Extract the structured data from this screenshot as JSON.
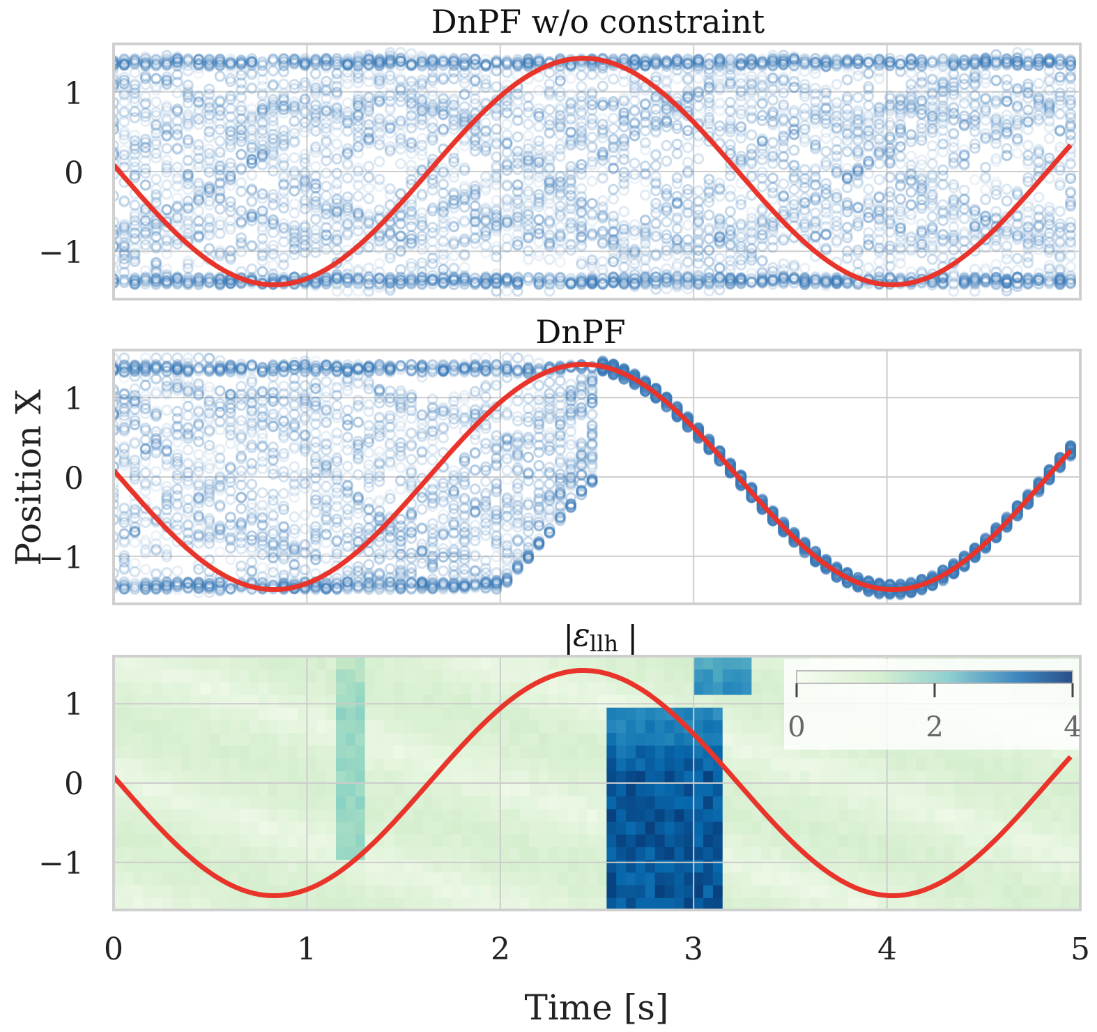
{
  "chart_data": [
    {
      "type": "scatter",
      "title": "DnPF w/o constraint",
      "xlim": [
        0,
        5
      ],
      "ylim": [
        -1.6,
        1.6
      ],
      "xticks": [
        "0",
        "1",
        "2",
        "3",
        "4",
        "5"
      ],
      "yticks": [
        {
          "v": 1,
          "label": "1"
        },
        {
          "v": 0,
          "label": "0"
        },
        {
          "v": -1,
          "label": "−1"
        }
      ],
      "grid": true,
      "particles_description": "particle cloud spread over whole range",
      "truth": {
        "name": "true trajectory",
        "amplitude": 1.42,
        "period": 3.2,
        "x_at_peak": 2.43,
        "color": "#e8342a"
      }
    },
    {
      "type": "scatter",
      "title": "DnPF",
      "xlim": [
        0,
        5
      ],
      "ylim": [
        -1.6,
        1.6
      ],
      "xticks": [
        "0",
        "1",
        "2",
        "3",
        "4",
        "5"
      ],
      "yticks": [
        {
          "v": 1,
          "label": "1"
        },
        {
          "v": 0,
          "label": "0"
        },
        {
          "v": -1,
          "label": "−1"
        }
      ],
      "grid": true,
      "converges_at": 2.5,
      "truth": {
        "name": "true trajectory",
        "amplitude": 1.42,
        "period": 3.2,
        "x_at_peak": 2.43,
        "color": "#e8342a"
      }
    },
    {
      "type": "heatmap",
      "title": "|εllh|",
      "title_main": "ε",
      "title_sub": "llh",
      "xlim": [
        0,
        5
      ],
      "ylim": [
        -1.6,
        1.6
      ],
      "xticks": [
        "0",
        "1",
        "2",
        "3",
        "4",
        "5"
      ],
      "yticks": [
        {
          "v": 1,
          "label": "1"
        },
        {
          "v": 0,
          "label": "0"
        },
        {
          "v": -1,
          "label": "−1"
        }
      ],
      "grid": true,
      "colorbar": {
        "min": 0,
        "max": 4,
        "ticks": [
          "0",
          "2",
          "4"
        ],
        "colors": [
          "#f7fcf0",
          "#ccebc5",
          "#7bccc4",
          "#2b8cbe",
          "#0868ac",
          "#08306b"
        ]
      },
      "high_regions": [
        {
          "t0": 2.52,
          "t1": 3.12,
          "y0": -1.6,
          "y1": 0.9,
          "value": 3.6
        },
        {
          "t0": 2.95,
          "t1": 3.25,
          "y0": 1.0,
          "y1": 1.6,
          "value": 2.8
        },
        {
          "t0": 1.15,
          "t1": 1.3,
          "y0": -1.0,
          "y1": 1.6,
          "value": 1.4
        }
      ],
      "truth": {
        "name": "true trajectory",
        "amplitude": 1.42,
        "period": 3.2,
        "x_at_peak": 2.43,
        "color": "#e8342a"
      }
    }
  ],
  "axes": {
    "xlabel": "Time [s]",
    "ylabel": "Position X"
  },
  "colors": {
    "particle": "#3b7ab8",
    "grid": "#cccccc",
    "frame": "#cfcfcf",
    "truth": "#e8342a"
  }
}
